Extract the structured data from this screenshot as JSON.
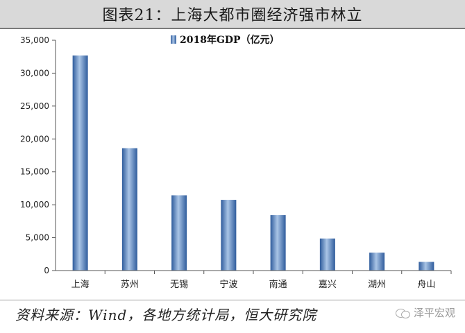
{
  "header": {
    "title": "图表21：上海大都市圈经济强市林立"
  },
  "chart_data": {
    "type": "bar",
    "categories": [
      "上海",
      "苏州",
      "无锡",
      "宁波",
      "南通",
      "嘉兴",
      "湖州",
      "舟山"
    ],
    "series": [
      {
        "name": "2018年GDP（亿元）",
        "values": [
          32680,
          18597,
          11439,
          10746,
          8427,
          4872,
          2719,
          1317
        ]
      }
    ],
    "ylim": [
      0,
      35000
    ],
    "yticks": [
      0,
      5000,
      10000,
      15000,
      20000,
      25000,
      30000,
      35000
    ],
    "ytick_labels": [
      "0",
      "5,000",
      "10,000",
      "15,000",
      "20,000",
      "25,000",
      "30,000",
      "35,000"
    ],
    "legend_position": "top-center",
    "grid": false,
    "bar_color": "#4a7bbd"
  },
  "footer": {
    "source": "资料来源：Wind，各地方统计局，恒大研究院",
    "watermark": "泽平宏观"
  }
}
